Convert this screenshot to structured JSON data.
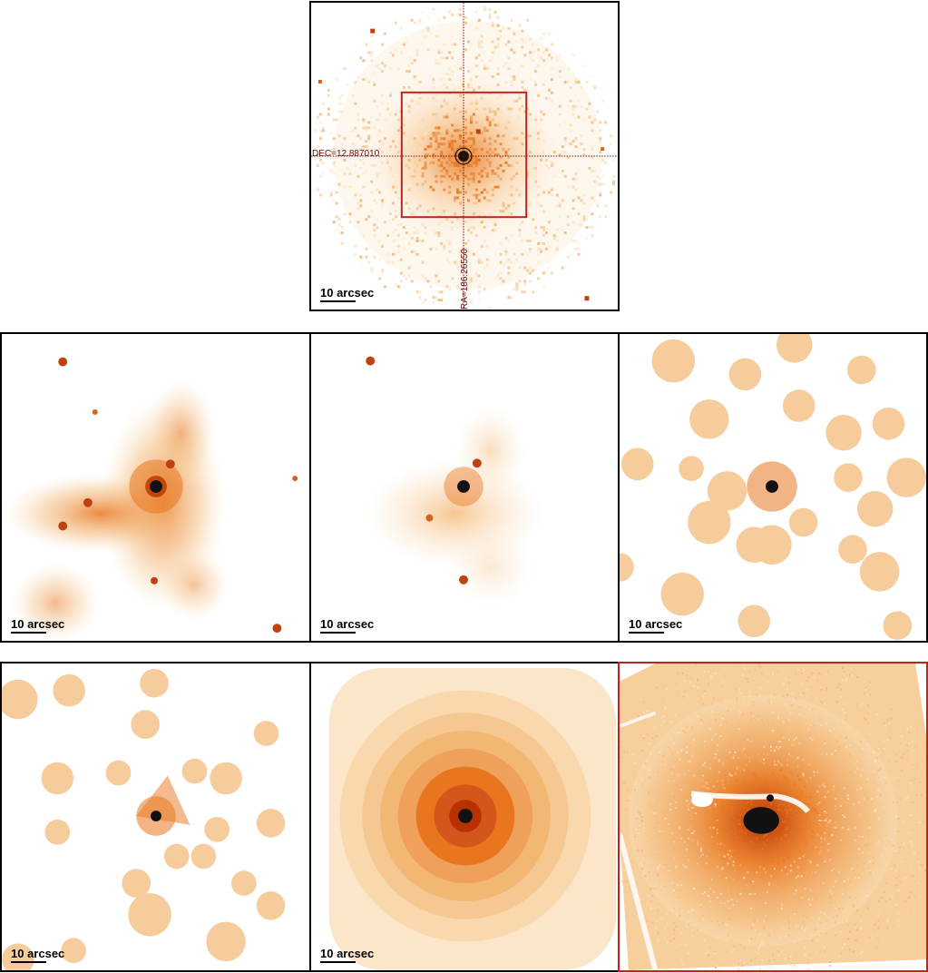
{
  "top_panel": {
    "dec_label": "DEC=12.887010",
    "ra_label": "RA=186.26550",
    "scale_label": "10 arcsec"
  },
  "panels": [
    {
      "scale_label": "10 arcsec"
    },
    {
      "scale_label": "10 arcsec"
    },
    {
      "scale_label": "10 arcsec"
    },
    {
      "scale_label": "10 arcsec"
    },
    {
      "scale_label": "10 arcsec"
    },
    {
      "scale_label": ""
    }
  ],
  "colors": {
    "core": "#111111",
    "deep": "#b83200",
    "mid": "#e8761f",
    "light": "#f3b774",
    "faint": "#fbe2c3",
    "frame_red": "#c0221c",
    "crosshair": "#6a0a0a"
  }
}
